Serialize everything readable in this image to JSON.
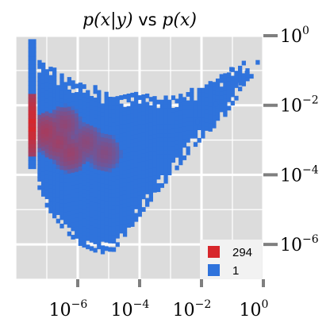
{
  "chart_data": {
    "type": "heatmap",
    "title": "p(x|y) vs p(x)",
    "title_parts": {
      "left": "p(x|y)",
      "mid": " vs ",
      "right": "p(x)"
    },
    "xlabel": "",
    "ylabel": "",
    "x_scale": "log10",
    "y_scale": "log10",
    "xlim": [
      1e-08,
      1
    ],
    "ylim": [
      1e-07,
      1
    ],
    "x_ticks": [
      {
        "base": "10",
        "exp": "−6",
        "value": 1e-06
      },
      {
        "base": "10",
        "exp": "−4",
        "value": 0.0001
      },
      {
        "base": "10",
        "exp": "−2",
        "value": 0.01
      },
      {
        "base": "10",
        "exp": "0",
        "value": 1
      }
    ],
    "y_ticks": [
      {
        "base": "10",
        "exp": "0",
        "value": 1
      },
      {
        "base": "10",
        "exp": "−2",
        "value": 0.01
      },
      {
        "base": "10",
        "exp": "−4",
        "value": 0.0001
      },
      {
        "base": "10",
        "exp": "−6",
        "value": 1e-06
      }
    ],
    "y_axis_position": "right",
    "grid": true,
    "background_color": "#dcdcdc",
    "grid_color": "#ffffff",
    "legend": {
      "placement": "bottom-right",
      "entries": [
        {
          "label": "294",
          "color": "#d7262b"
        },
        {
          "label": "1",
          "color": "#2f73dc"
        }
      ]
    },
    "color_scale": {
      "min": 1,
      "max": 294,
      "low_color": "#2f73dc",
      "high_color": "#d7262b"
    },
    "cells_description_note_free": true,
    "cells": {
      "column_left": {
        "log_x": -7.6,
        "log_y_top": 0.0,
        "log_y_bottom": -3.7
      },
      "hot_column": [
        {
          "log_y": -2.4,
          "count": 290
        },
        {
          "log_y": -2.6,
          "count": 294
        },
        {
          "log_y": -2.2,
          "count": 230
        },
        {
          "log_y": -2.8,
          "count": 220
        },
        {
          "log_y": -2.0,
          "count": 150
        },
        {
          "log_y": -3.0,
          "count": 120
        },
        {
          "log_y": -1.8,
          "count": 90
        },
        {
          "log_y": -3.2,
          "count": 70
        }
      ],
      "hot_spots": [
        {
          "log_x": -7.1,
          "log_y": -2.7,
          "count": 60
        },
        {
          "log_x": -6.7,
          "log_y": -3.0,
          "count": 45
        },
        {
          "log_x": -6.3,
          "log_y": -3.3,
          "count": 40
        },
        {
          "log_x": -6.5,
          "log_y": -2.5,
          "count": 30
        },
        {
          "log_x": -5.8,
          "log_y": -3.0,
          "count": 25
        },
        {
          "log_x": -5.2,
          "log_y": -3.3,
          "count": 20
        }
      ],
      "envelope": [
        {
          "log_x": -7.5,
          "log_y_min": -4.1,
          "log_y_max": -0.5
        },
        {
          "log_x": -7.0,
          "log_y_min": -4.9,
          "log_y_max": -0.8
        },
        {
          "log_x": -6.5,
          "log_y_min": -5.5,
          "log_y_max": -1.1
        },
        {
          "log_x": -6.0,
          "log_y_min": -5.9,
          "log_y_max": -1.3
        },
        {
          "log_x": -5.5,
          "log_y_min": -6.1,
          "log_y_max": -1.4
        },
        {
          "log_x": -5.0,
          "log_y_min": -6.2,
          "log_y_max": -1.6
        },
        {
          "log_x": -4.5,
          "log_y_min": -5.6,
          "log_y_max": -1.6
        },
        {
          "log_x": -4.0,
          "log_y_min": -5.0,
          "log_y_max": -1.6
        },
        {
          "log_x": -3.5,
          "log_y_min": -4.4,
          "log_y_max": -1.7
        },
        {
          "log_x": -3.0,
          "log_y_min": -3.9,
          "log_y_max": -1.7
        },
        {
          "log_x": -2.5,
          "log_y_min": -3.3,
          "log_y_max": -1.5
        },
        {
          "log_x": -2.0,
          "log_y_min": -2.8,
          "log_y_max": -1.4
        },
        {
          "log_x": -1.5,
          "log_y_min": -2.4,
          "log_y_max": -1.1
        },
        {
          "log_x": -1.0,
          "log_y_min": -1.8,
          "log_y_max": -0.8
        },
        {
          "log_x": -0.5,
          "log_y_min": -1.2,
          "log_y_max": -0.6
        }
      ]
    }
  }
}
